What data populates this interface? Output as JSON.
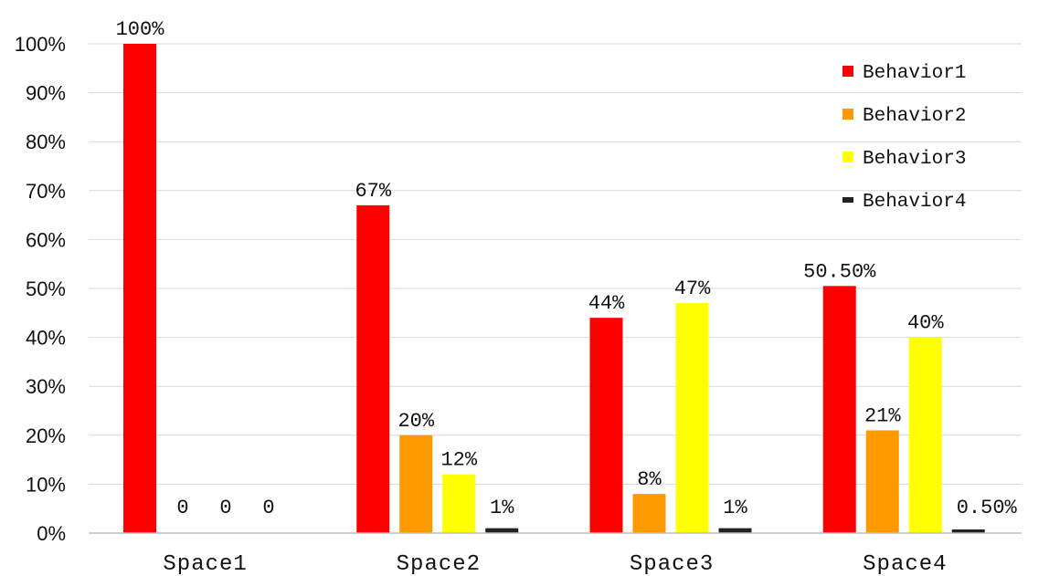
{
  "chart_data": {
    "type": "bar",
    "title": "",
    "xlabel": "",
    "ylabel": "",
    "ylim": [
      0,
      100
    ],
    "y_ticks": [
      "0%",
      "10%",
      "20%",
      "30%",
      "40%",
      "50%",
      "60%",
      "70%",
      "80%",
      "90%",
      "100%"
    ],
    "categories": [
      "Space1",
      "Space2",
      "Space3",
      "Space4"
    ],
    "grid": true,
    "legend_position": "top-right",
    "series": [
      {
        "name": "Behavior1",
        "color": "#ff0000",
        "values": [
          100,
          67,
          44,
          50.5
        ],
        "labels": [
          "100%",
          "67%",
          "44%",
          "50.50%"
        ]
      },
      {
        "name": "Behavior2",
        "color": "#ff9900",
        "values": [
          0,
          20,
          8,
          21
        ],
        "labels": [
          "0",
          "20%",
          "8%",
          "21%"
        ]
      },
      {
        "name": "Behavior3",
        "color": "#ffff00",
        "values": [
          0,
          12,
          47,
          40
        ],
        "labels": [
          "0",
          "12%",
          "47%",
          "40%"
        ]
      },
      {
        "name": "Behavior4",
        "color": "#222222",
        "values": [
          0,
          1,
          1,
          0.5
        ],
        "labels": [
          "0",
          "1%",
          "1%",
          "0.50%"
        ]
      }
    ]
  }
}
